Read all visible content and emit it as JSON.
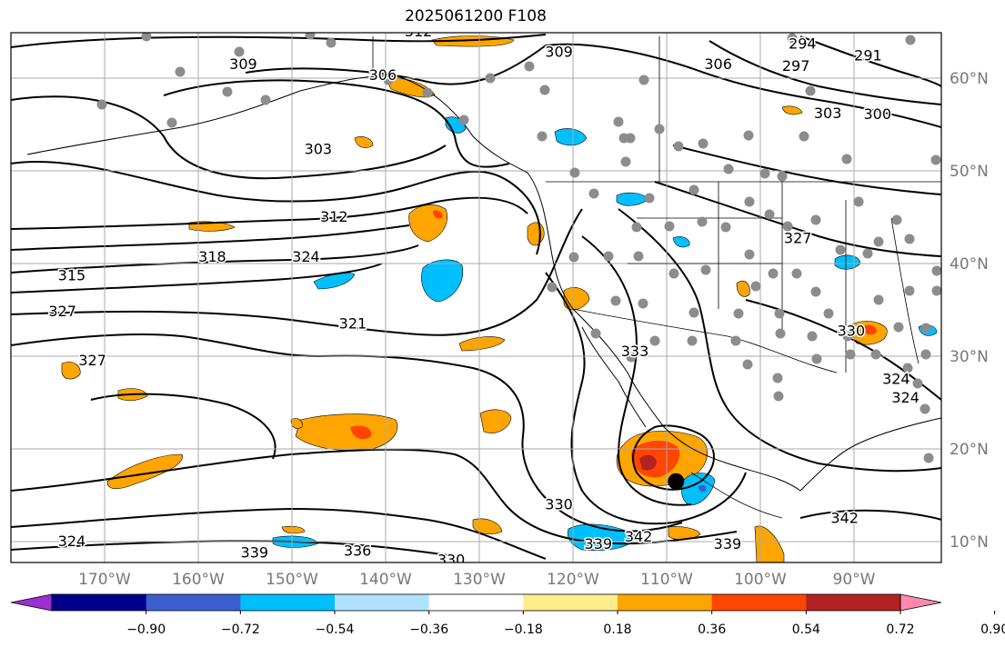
{
  "title": "2025061200 F108",
  "lon_labels": [
    "170°W",
    "160°W",
    "150°W",
    "140°W",
    "130°W",
    "120°W",
    "110°W",
    "100°W",
    "90°W"
  ],
  "lat_labels": [
    "60°N",
    "50°N",
    "40°N",
    "30°N",
    "20°N",
    "10°N"
  ],
  "colorbar": {
    "tick_labels": [
      "−0.90",
      "−0.72",
      "−0.54",
      "−0.36",
      "−0.18",
      "0.18",
      "0.36",
      "0.54",
      "0.72",
      "0.90"
    ],
    "colors": [
      "#9b30d0",
      "#00008b",
      "#3a5fcd",
      "#00bfff",
      "#b0e2ff",
      "#ffffff",
      "#ffec8b",
      "#ffa500",
      "#ff4500",
      "#b22222",
      "#ff88aa"
    ]
  },
  "contour_labels": [
    {
      "text": "312",
      "lon": -136.5,
      "lat": 64.5
    },
    {
      "text": "309",
      "lon": -121.5,
      "lat": 62.3
    },
    {
      "text": "306",
      "lon": -104.5,
      "lat": 61.0
    },
    {
      "text": "294",
      "lon": -95.5,
      "lat": 63.2
    },
    {
      "text": "291",
      "lon": -88.5,
      "lat": 61.9
    },
    {
      "text": "297",
      "lon": -96.2,
      "lat": 60.8
    },
    {
      "text": "303",
      "lon": -92.8,
      "lat": 55.7
    },
    {
      "text": "300",
      "lon": -87.5,
      "lat": 55.6
    },
    {
      "text": "309",
      "lon": -155.2,
      "lat": 61.0
    },
    {
      "text": "306",
      "lon": -140.3,
      "lat": 59.8
    },
    {
      "text": "303",
      "lon": -147.2,
      "lat": 51.8
    },
    {
      "text": "312",
      "lon": -145.5,
      "lat": 44.5
    },
    {
      "text": "318",
      "lon": -158.5,
      "lat": 40.2
    },
    {
      "text": "324",
      "lon": -148.5,
      "lat": 40.2
    },
    {
      "text": "315",
      "lon": -173.5,
      "lat": 38.2
    },
    {
      "text": "327",
      "lon": -174.5,
      "lat": 34.3
    },
    {
      "text": "321",
      "lon": -143.5,
      "lat": 33.0
    },
    {
      "text": "327",
      "lon": -171.3,
      "lat": 29.0
    },
    {
      "text": "333",
      "lon": -113.4,
      "lat": 30.0
    },
    {
      "text": "327",
      "lon": -96.0,
      "lat": 42.2
    },
    {
      "text": "330",
      "lon": -90.3,
      "lat": 32.2
    },
    {
      "text": "324",
      "lon": -85.5,
      "lat": 27.0
    },
    {
      "text": "324",
      "lon": -84.5,
      "lat": 25.0
    },
    {
      "text": "330",
      "lon": -121.5,
      "lat": 13.5
    },
    {
      "text": "339",
      "lon": -117.3,
      "lat": 9.2
    },
    {
      "text": "342",
      "lon": -113.0,
      "lat": 10.0
    },
    {
      "text": "339",
      "lon": -103.5,
      "lat": 9.2
    },
    {
      "text": "342",
      "lon": -91.0,
      "lat": 12.0
    },
    {
      "text": "324",
      "lon": -173.5,
      "lat": 9.5
    },
    {
      "text": "339",
      "lon": -154.0,
      "lat": 8.3
    },
    {
      "text": "336",
      "lon": -143.0,
      "lat": 8.5
    },
    {
      "text": "330",
      "lon": -133.0,
      "lat": 7.5
    }
  ],
  "storm_marker": {
    "lon": -109.0,
    "lat": 16.5
  }
}
